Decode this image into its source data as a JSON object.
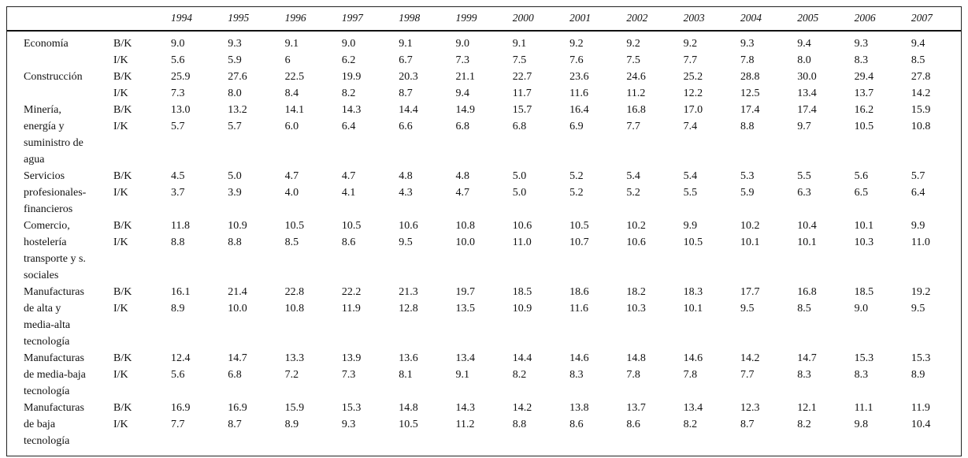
{
  "table": {
    "ratio_labels": [
      "B/K",
      "I/K"
    ],
    "years": [
      "1994",
      "1995",
      "1996",
      "1997",
      "1998",
      "1999",
      "2000",
      "2001",
      "2002",
      "2003",
      "2004",
      "2005",
      "2006",
      "2007"
    ],
    "rows": [
      {
        "sector": "Economía",
        "bk": [
          "9.0",
          "9.3",
          "9.1",
          "9.0",
          "9.1",
          "9.0",
          "9.1",
          "9.2",
          "9.2",
          "9.2",
          "9.3",
          "9.4",
          "9.3",
          "9.4"
        ],
        "ik": [
          "5.6",
          "5.9",
          "6",
          "6.2",
          "6.7",
          "7.3",
          "7.5",
          "7.6",
          "7.5",
          "7.7",
          "7.8",
          "8.0",
          "8.3",
          "8.5"
        ]
      },
      {
        "sector": "Construcción",
        "bk": [
          "25.9",
          "27.6",
          "22.5",
          "19.9",
          "20.3",
          "21.1",
          "22.7",
          "23.6",
          "24.6",
          "25.2",
          "28.8",
          "30.0",
          "29.4",
          "27.8"
        ],
        "ik": [
          "7.3",
          "8.0",
          "8.4",
          "8.2",
          "8.7",
          "9.4",
          "11.7",
          "11.6",
          "11.2",
          "12.2",
          "12.5",
          "13.4",
          "13.7",
          "14.2"
        ]
      },
      {
        "sector": "Minería,\nenergía y\nsuministro de\nagua",
        "bk": [
          "13.0",
          "13.2",
          "14.1",
          "14.3",
          "14.4",
          "14.9",
          "15.7",
          "16.4",
          "16.8",
          "17.0",
          "17.4",
          "17.4",
          "16.2",
          "15.9"
        ],
        "ik": [
          "5.7",
          "5.7",
          "6.0",
          "6.4",
          "6.6",
          "6.8",
          "6.8",
          "6.9",
          "7.7",
          "7.4",
          "8.8",
          "9.7",
          "10.5",
          "10.8"
        ]
      },
      {
        "sector": "Servicios\nprofesionales-\nfinancieros",
        "bk": [
          "4.5",
          "5.0",
          "4.7",
          "4.7",
          "4.8",
          "4.8",
          "5.0",
          "5.2",
          "5.4",
          "5.4",
          "5.3",
          "5.5",
          "5.6",
          "5.7"
        ],
        "ik": [
          "3.7",
          "3.9",
          "4.0",
          "4.1",
          "4.3",
          "4.7",
          "5.0",
          "5.2",
          "5.2",
          "5.5",
          "5.9",
          "6.3",
          "6.5",
          "6.4"
        ]
      },
      {
        "sector": "Comercio,\nhostelería\ntransporte y s.\nsociales",
        "bk": [
          "11.8",
          "10.9",
          "10.5",
          "10.5",
          "10.6",
          "10.8",
          "10.6",
          "10.5",
          "10.2",
          "9.9",
          "10.2",
          "10.4",
          "10.1",
          "9.9"
        ],
        "ik": [
          "8.8",
          "8.8",
          "8.5",
          "8.6",
          "9.5",
          "10.0",
          "11.0",
          "10.7",
          "10.6",
          "10.5",
          "10.1",
          "10.1",
          "10.3",
          "11.0"
        ]
      },
      {
        "sector": "Manufacturas\nde alta y\nmedia-alta\ntecnología",
        "bk": [
          "16.1",
          "21.4",
          "22.8",
          "22.2",
          "21.3",
          "19.7",
          "18.5",
          "18.6",
          "18.2",
          "18.3",
          "17.7",
          "16.8",
          "18.5",
          "19.2"
        ],
        "ik": [
          "8.9",
          "10.0",
          "10.8",
          "11.9",
          "12.8",
          "13.5",
          "10.9",
          "11.6",
          "10.3",
          "10.1",
          "9.5",
          "8.5",
          "9.0",
          "9.5"
        ]
      },
      {
        "sector": "Manufacturas\nde media-baja\ntecnología",
        "bk": [
          "12.4",
          "14.7",
          "13.3",
          "13.9",
          "13.6",
          "13.4",
          "14.4",
          "14.6",
          "14.8",
          "14.6",
          "14.2",
          "14.7",
          "15.3",
          "15.3"
        ],
        "ik": [
          "5.6",
          "6.8",
          "7.2",
          "7.3",
          "8.1",
          "9.1",
          "8.2",
          "8.3",
          "7.8",
          "7.8",
          "7.7",
          "8.3",
          "8.3",
          "8.9"
        ]
      },
      {
        "sector": "Manufacturas\nde baja\ntecnología",
        "bk": [
          "16.9",
          "16.9",
          "15.9",
          "15.3",
          "14.8",
          "14.3",
          "14.2",
          "13.8",
          "13.7",
          "13.4",
          "12.3",
          "12.1",
          "11.1",
          "11.9"
        ],
        "ik": [
          "7.7",
          "8.7",
          "8.9",
          "9.3",
          "10.5",
          "11.2",
          "8.8",
          "8.6",
          "8.6",
          "8.2",
          "8.7",
          "8.2",
          "9.8",
          "10.4"
        ]
      }
    ]
  }
}
